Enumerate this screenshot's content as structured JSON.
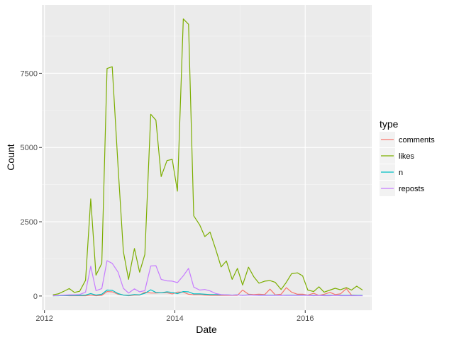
{
  "chart_data": {
    "type": "line",
    "xlabel": "Date",
    "ylabel": "Count",
    "x_tick_labels": [
      "2012",
      "2014",
      "2016"
    ],
    "x_ticks": [
      2012,
      2014,
      2016
    ],
    "y_tick_labels": [
      "0",
      "2500",
      "5000",
      "7500"
    ],
    "y_ticks": [
      0,
      2500,
      5000,
      7500
    ],
    "xlim": [
      2011.96,
      2017.02
    ],
    "ylim": [
      -480,
      9800
    ],
    "grid": true,
    "legend_position": "right",
    "legend_title": "type",
    "x": [
      2012.13,
      2012.21,
      2012.29,
      2012.38,
      2012.46,
      2012.54,
      2012.63,
      2012.71,
      2012.79,
      2012.88,
      2012.96,
      2013.04,
      2013.13,
      2013.21,
      2013.29,
      2013.38,
      2013.46,
      2013.54,
      2013.63,
      2013.71,
      2013.79,
      2013.88,
      2013.96,
      2014.04,
      2014.13,
      2014.21,
      2014.29,
      2014.38,
      2014.46,
      2014.54,
      2014.63,
      2014.71,
      2014.79,
      2014.88,
      2014.96,
      2015.04,
      2015.13,
      2015.21,
      2015.29,
      2015.38,
      2015.46,
      2015.54,
      2015.63,
      2015.71,
      2015.79,
      2015.88,
      2015.96,
      2016.04,
      2016.13,
      2016.21,
      2016.29,
      2016.38,
      2016.46,
      2016.54,
      2016.63,
      2016.71,
      2016.79,
      2016.88
    ],
    "series": [
      {
        "name": "comments",
        "color": "#F8766D",
        "values": [
          10,
          15,
          15,
          10,
          10,
          10,
          10,
          30,
          10,
          20,
          150,
          140,
          60,
          30,
          10,
          30,
          30,
          130,
          100,
          100,
          110,
          110,
          70,
          130,
          130,
          60,
          40,
          40,
          30,
          20,
          20,
          20,
          20,
          20,
          20,
          200,
          60,
          50,
          60,
          50,
          230,
          40,
          60,
          280,
          130,
          60,
          60,
          30,
          90,
          20,
          60,
          120,
          50,
          70,
          250,
          30,
          20,
          10
        ]
      },
      {
        "name": "likes",
        "color": "#7CAE00",
        "values": [
          40,
          70,
          150,
          250,
          120,
          160,
          530,
          3270,
          700,
          1100,
          7660,
          7720,
          4330,
          1500,
          560,
          1600,
          800,
          1400,
          6120,
          5920,
          4020,
          4560,
          4600,
          3530,
          9330,
          9150,
          2700,
          2400,
          2000,
          2150,
          1550,
          980,
          1180,
          560,
          930,
          370,
          970,
          650,
          430,
          500,
          520,
          460,
          220,
          460,
          750,
          780,
          680,
          200,
          150,
          310,
          130,
          200,
          260,
          210,
          280,
          200,
          330,
          200
        ]
      },
      {
        "name": "n",
        "color": "#00BFC4",
        "values": [
          10,
          10,
          15,
          20,
          20,
          20,
          30,
          80,
          30,
          60,
          200,
          190,
          80,
          30,
          20,
          50,
          40,
          90,
          210,
          120,
          110,
          140,
          120,
          80,
          150,
          140,
          70,
          70,
          60,
          50,
          50,
          40,
          40,
          30,
          40,
          20,
          40,
          30,
          30,
          30,
          30,
          30,
          20,
          30,
          30,
          30,
          30,
          20,
          20,
          20,
          20,
          20,
          20,
          20,
          20,
          20,
          20,
          20
        ]
      },
      {
        "name": "reposts",
        "color": "#C77CFF",
        "values": [
          10,
          15,
          30,
          40,
          40,
          50,
          130,
          1000,
          180,
          250,
          1190,
          1100,
          800,
          260,
          100,
          240,
          140,
          180,
          1010,
          1020,
          560,
          510,
          500,
          450,
          680,
          930,
          300,
          200,
          220,
          170,
          80,
          50,
          40,
          30,
          40,
          20,
          30,
          30,
          20,
          20,
          20,
          20,
          20,
          20,
          20,
          20,
          20,
          20,
          10,
          20,
          10,
          10,
          20,
          10,
          10,
          10,
          10,
          10
        ]
      }
    ]
  }
}
